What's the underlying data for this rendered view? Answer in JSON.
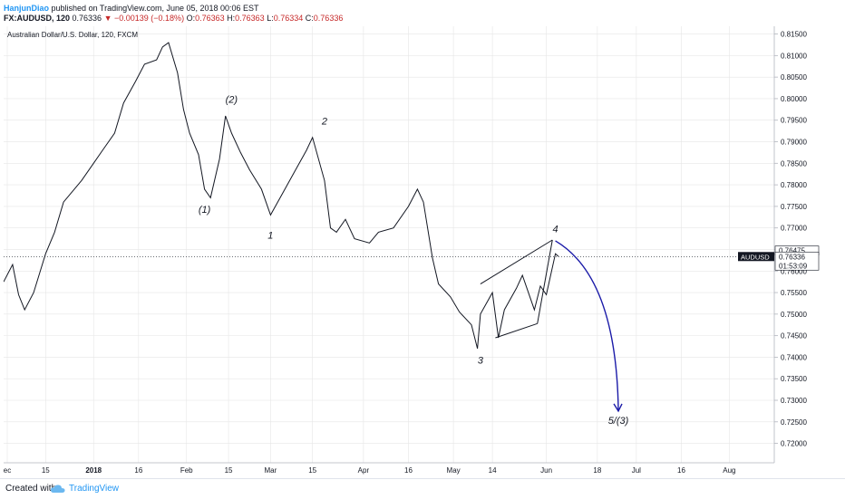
{
  "header": {
    "author": "HanjunDiao",
    "published": "published on TradingView.com, June 05, 2018 00:06 EST"
  },
  "quote": {
    "symbol": "FX:AUDUSD, 120",
    "last": "0.76336",
    "change": "▼ −0.00139 (−0.18%)",
    "open_label": "O:",
    "open": "0.76363",
    "high_label": "H:",
    "high": "0.76363",
    "low_label": "L:",
    "low": "0.76334",
    "close_label": "C:",
    "close": "0.76336"
  },
  "footer": {
    "created_with": "Created with",
    "brand": "TradingView"
  },
  "colors": {
    "price_line": "#131722",
    "forecast_arrow": "#1a1aa8",
    "symbol_badge": "#131722",
    "grid": "#e6e6e6"
  },
  "chart_data": {
    "type": "line",
    "title": "Australian Dollar/U.S. Dollar, 120, FXCM",
    "ylim": [
      0.7155,
      0.8168
    ],
    "y_ticks": [
      "0.81500",
      "0.81000",
      "0.80500",
      "0.80000",
      "0.79500",
      "0.79000",
      "0.78500",
      "0.78000",
      "0.77500",
      "0.77000",
      "0.76500",
      "0.76000",
      "0.75500",
      "0.75000",
      "0.74500",
      "0.74000",
      "0.73500",
      "0.73000",
      "0.72500",
      "0.72000"
    ],
    "x_ticks": [
      "ec",
      "15",
      "2018",
      "16",
      "Feb",
      "15",
      "Mar",
      "15",
      "Apr",
      "16",
      "May",
      "14",
      "Jun",
      "18",
      "Jul",
      "16",
      "Aug"
    ],
    "price_labels": [
      "0.76475",
      "0.76336",
      "01:53:09"
    ],
    "symbol_label": "AUDUSD",
    "series": [
      {
        "x": [
          "Dec 01",
          "Dec 04",
          "Dec 06",
          "Dec 08",
          "Dec 11",
          "Dec 13",
          "Dec 15",
          "Dec 18",
          "Dec 21",
          "Dec 27",
          "Jan 01",
          "Jan 04",
          "Jan 08",
          "Jan 11",
          "Jan 15",
          "Jan 18",
          "Jan 22",
          "Jan 24",
          "Jan 26",
          "Jan 29",
          "Jan 31",
          "Feb 02",
          "Feb 05",
          "Feb 07",
          "Feb 09",
          "Feb 12",
          "Feb 14",
          "Feb 16",
          "Feb 19",
          "Feb 22",
          "Feb 26",
          "Mar 01",
          "Mar 05",
          "Mar 09",
          "Mar 13",
          "Mar 15",
          "Mar 19",
          "Mar 21",
          "Mar 23",
          "Mar 26",
          "Mar 29",
          "Apr 03",
          "Apr 06",
          "Apr 11",
          "Apr 16",
          "Apr 19",
          "Apr 21",
          "Apr 24",
          "Apr 26",
          "Apr 30",
          "May 03",
          "May 07",
          "May 09",
          "May 10",
          "May 14",
          "May 16",
          "May 18",
          "May 22",
          "May 24",
          "May 28",
          "May 30",
          "Jun 01",
          "Jun 04",
          "Jun 05"
        ],
        "values": [
          0.7575,
          0.7615,
          0.7545,
          0.751,
          0.755,
          0.7595,
          0.764,
          0.769,
          0.776,
          0.781,
          0.785,
          0.788,
          0.792,
          0.799,
          0.804,
          0.808,
          0.809,
          0.812,
          0.813,
          0.806,
          0.7975,
          0.792,
          0.787,
          0.779,
          0.777,
          0.786,
          0.796,
          0.792,
          0.7875,
          0.7835,
          0.779,
          0.773,
          0.778,
          0.783,
          0.788,
          0.791,
          0.781,
          0.77,
          0.769,
          0.772,
          0.7675,
          0.7665,
          0.769,
          0.77,
          0.775,
          0.779,
          0.776,
          0.763,
          0.757,
          0.754,
          0.7505,
          0.7475,
          0.742,
          0.75,
          0.755,
          0.7445,
          0.751,
          0.756,
          0.759,
          0.751,
          0.7565,
          0.7545,
          0.764,
          0.7634
        ]
      }
    ],
    "wave_labels": [
      {
        "text": "(1)",
        "x": "Feb 07",
        "y": 0.7735
      },
      {
        "text": "(2)",
        "x": "Feb 16",
        "y": 0.799
      },
      {
        "text": "1",
        "x": "Mar 01",
        "y": 0.7675
      },
      {
        "text": "2",
        "x": "Mar 19",
        "y": 0.794
      },
      {
        "text": "3",
        "x": "May 10",
        "y": 0.7385
      },
      {
        "text": "4",
        "x": "Jun 04",
        "y": 0.769
      },
      {
        "text": "5/(3)",
        "x": "Jun 25",
        "y": 0.7245
      }
    ],
    "wedge_lines": [
      {
        "from": {
          "x": "May 10",
          "y": 0.757
        },
        "to": {
          "x": "Jun 03",
          "y": 0.7672
        }
      },
      {
        "from": {
          "x": "May 15",
          "y": 0.7445
        },
        "to": {
          "x": "May 29",
          "y": 0.7478
        }
      },
      {
        "from": {
          "x": "May 29",
          "y": 0.7478
        },
        "to": {
          "x": "Jun 03",
          "y": 0.7672
        }
      }
    ],
    "forecast_arrow": {
      "from": {
        "x": "Jun 04",
        "y": 0.767
      },
      "to": {
        "x": "Jun 25",
        "y": 0.7275
      }
    }
  }
}
